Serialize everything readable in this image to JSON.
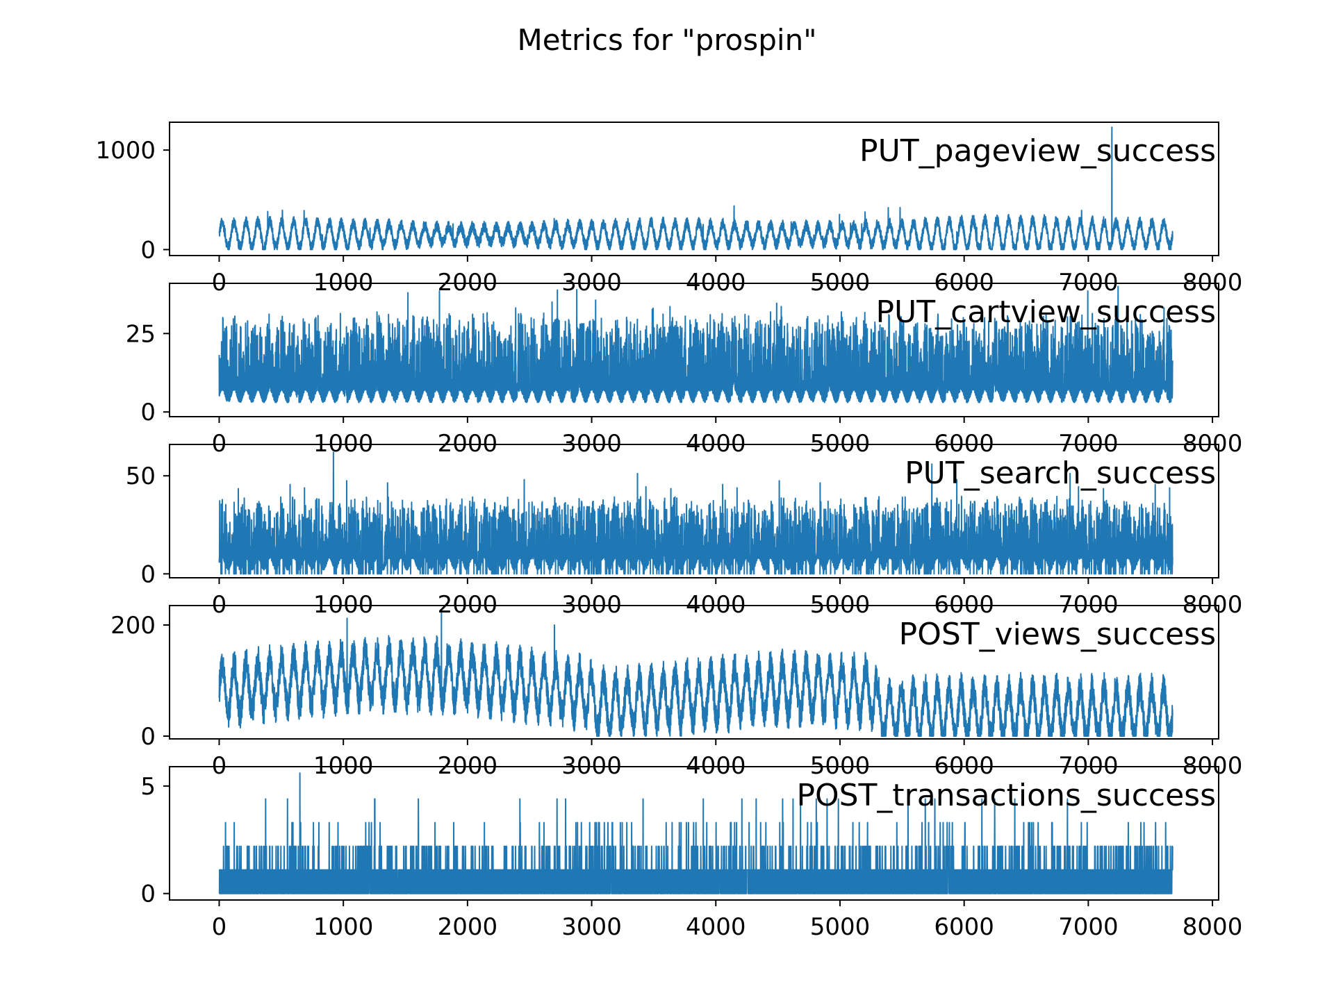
{
  "chart_data": {
    "title": "Metrics for \"prospin\"",
    "type": "line",
    "colors": {
      "line": "#1f77b4",
      "axes": "#000000",
      "background": "#ffffff"
    },
    "grid": false,
    "x_range": [
      -400,
      8050
    ],
    "x_ticks": [
      0,
      1000,
      2000,
      3000,
      4000,
      5000,
      6000,
      7000,
      8000
    ],
    "x_tick_labels": [
      "0",
      "1000",
      "2000",
      "3000",
      "4000",
      "5000",
      "6000",
      "7000",
      "8000"
    ],
    "n_points": 7680,
    "panels": [
      {
        "name": "PUT_pageview_success",
        "type": "line",
        "ylim": [
          -60,
          1280
        ],
        "y_ticks": [
          0,
          1000
        ],
        "y_tick_labels": [
          "0",
          "1000"
        ],
        "summary": {
          "baseline": 150,
          "amplitude": 130,
          "min": 0,
          "typical_peak": 380,
          "max_spike": {
            "x": 7190,
            "y": 1230
          }
        },
        "values": [],
        "legend_text_position": "upper-right"
      },
      {
        "name": "PUT_cartview_success",
        "type": "line",
        "ylim": [
          -1.5,
          41
        ],
        "y_ticks": [
          0,
          25
        ],
        "y_tick_labels": [
          "0",
          "25"
        ],
        "summary": {
          "baseline": 6,
          "min": 0,
          "typical_peak": 25,
          "max": 39
        },
        "values": [],
        "legend_text_position": "upper-right"
      },
      {
        "name": "PUT_search_success",
        "type": "line",
        "ylim": [
          -2,
          66
        ],
        "y_ticks": [
          0,
          50
        ],
        "y_tick_labels": [
          "0",
          "50"
        ],
        "summary": {
          "baseline": 8,
          "min": 0,
          "typical_peak": 40,
          "max": 62
        },
        "values": [],
        "legend_text_position": "upper-right"
      },
      {
        "name": "POST_views_success",
        "type": "line",
        "ylim": [
          -5,
          235
        ],
        "y_ticks": [
          0,
          200
        ],
        "y_tick_labels": [
          "0",
          "200"
        ],
        "summary": {
          "baseline_first_part": 90,
          "baseline_last_part": 45,
          "min": 0,
          "max": 225
        },
        "values": [],
        "legend_text_position": "upper-right"
      },
      {
        "name": "POST_transactions_success",
        "type": "line",
        "ylim": [
          -0.3,
          5.9
        ],
        "y_ticks": [
          0,
          5
        ],
        "y_tick_labels": [
          "0",
          "5"
        ],
        "summary": {
          "discrete_levels": [
            0,
            1.1,
            2.2,
            3.3,
            4.4
          ],
          "max": 5.6
        },
        "values": [],
        "legend_text_position": "upper-right"
      }
    ]
  }
}
